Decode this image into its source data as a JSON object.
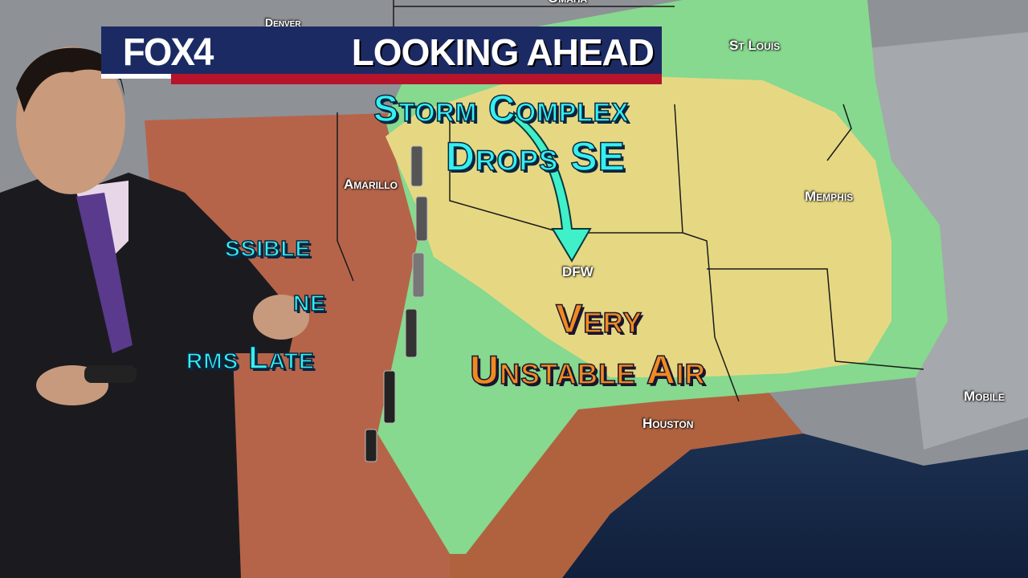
{
  "banner": {
    "logo": "FOX4",
    "segment_title": "LOOKING AHEAD",
    "colors": {
      "navy": "#1c2a64",
      "red": "#b5142a"
    }
  },
  "map": {
    "cities": {
      "omaha": "Omaha",
      "denver": "Denver",
      "st_louis": "St Louis",
      "amarillo": "Amarillo",
      "memphis": "Memphis",
      "dfw": "DFW",
      "houston": "Houston",
      "mobile": "Mobile"
    },
    "headlines": {
      "storm_line1": "Storm Complex",
      "storm_line2": "Drops SE",
      "unstable_line1": "Very",
      "unstable_line2": "Unstable Air",
      "possible_line1": "ssible",
      "possible_line2": "ne",
      "possible_line3": "rms Late"
    },
    "zones": {
      "outer_color": "#86d98e",
      "inner_color": "#e6d883"
    },
    "arrow": {
      "icon": "arrow-down-icon",
      "color": "#40f0c8"
    }
  }
}
